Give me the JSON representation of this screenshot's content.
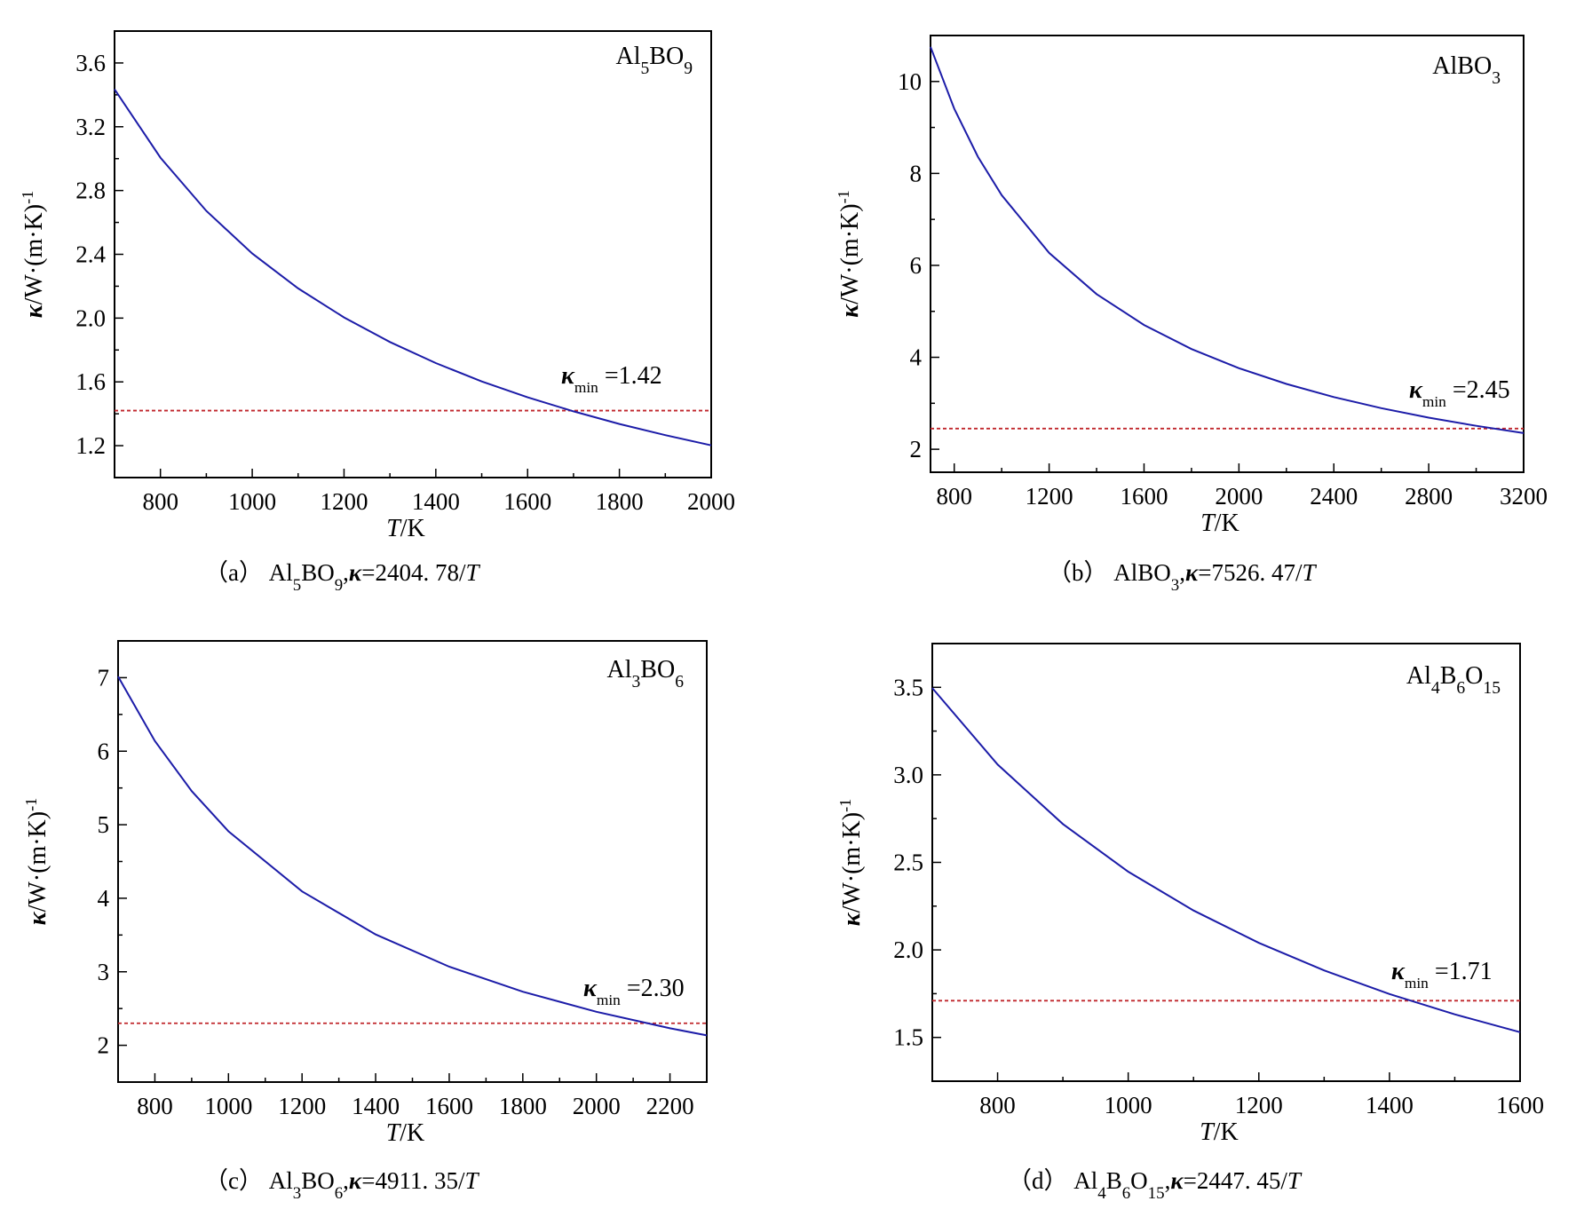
{
  "figure": {
    "panels": [
      {
        "caption": {
          "tag": "(a)",
          "formula": [
            [
              "Al",
              ""
            ],
            [
              "5",
              "sub"
            ],
            [
              "BO",
              ""
            ],
            [
              "9",
              "sub"
            ],
            [
              ",",
              ""
            ]
          ],
          "equation": "κ=2404. 78/T"
        },
        "label": [
          [
            "Al",
            ""
          ],
          [
            "5",
            "sub"
          ],
          [
            "BO",
            ""
          ],
          [
            "9",
            "sub"
          ]
        ],
        "kmin_label": "κmin =1.42",
        "kmin_text": {
          "sym": "κ",
          "sub": "min",
          "rest": "=1.42"
        }
      },
      {
        "caption": {
          "tag": "(b)",
          "formula": [
            [
              "AlBO",
              ""
            ],
            [
              "3",
              "sub"
            ],
            [
              ",",
              ""
            ]
          ],
          "equation": "κ=7526. 47/T"
        },
        "label": [
          [
            "AlBO",
            ""
          ],
          [
            "3",
            "sub"
          ]
        ],
        "kmin_label": "κmin=2.45",
        "kmin_text": {
          "sym": "κ",
          "sub": "min",
          "rest": "=2.45"
        }
      },
      {
        "caption": {
          "tag": "(c)",
          "formula": [
            [
              "Al",
              ""
            ],
            [
              "3",
              "sub"
            ],
            [
              "BO",
              ""
            ],
            [
              "6",
              "sub"
            ],
            [
              ",",
              ""
            ]
          ],
          "equation": "κ=4911. 35/T"
        },
        "label": [
          [
            "Al",
            ""
          ],
          [
            "3",
            "sub"
          ],
          [
            "BO",
            ""
          ],
          [
            "6",
            "sub"
          ]
        ],
        "kmin_label": "κmin =2.30",
        "kmin_text": {
          "sym": "κ",
          "sub": "min",
          "rest": "=2.30"
        }
      },
      {
        "caption": {
          "tag": "(d)",
          "formula": [
            [
              "Al",
              ""
            ],
            [
              "4",
              "sub"
            ],
            [
              "B",
              ""
            ],
            [
              "6",
              "sub"
            ],
            [
              "O",
              ""
            ],
            [
              "15",
              "sub"
            ],
            [
              ",",
              ""
            ]
          ],
          "equation": "κ=2447. 45/T"
        },
        "label": [
          [
            "Al",
            ""
          ],
          [
            "4",
            "sub"
          ],
          [
            "B",
            ""
          ],
          [
            "6",
            "sub"
          ],
          [
            "O",
            ""
          ],
          [
            "15",
            "sub"
          ]
        ],
        "kmin_label": "κmin=1.71",
        "kmin_text": {
          "sym": "κ",
          "sub": "min",
          "rest": "=1.71"
        }
      }
    ],
    "colors": {
      "curve": "#1c1ca8",
      "kmin_line": "#c0262b",
      "axes": "#000000"
    }
  },
  "chart_data": [
    {
      "type": "line",
      "xlabel": "T/K",
      "ylabel": "κ/W·(m·K)-1",
      "xlim": [
        700,
        2000
      ],
      "ylim": [
        1.0,
        3.8
      ],
      "xticks": [
        800,
        1000,
        1200,
        1400,
        1600,
        1800,
        2000
      ],
      "yticks": [
        1.2,
        1.6,
        2.0,
        2.4,
        2.8,
        3.2,
        3.6
      ],
      "ytick_labels": [
        "1.2",
        "1.6",
        "2.0",
        "2.4",
        "2.8",
        "3.2",
        "3.6"
      ],
      "series": [
        {
          "equation": "2404.78/T",
          "x": [
            700,
            800,
            900,
            1000,
            1100,
            1200,
            1300,
            1400,
            1500,
            1600,
            1700,
            1800,
            1900,
            2000
          ],
          "y": [
            3.435,
            3.006,
            2.672,
            2.405,
            2.186,
            2.004,
            1.85,
            1.718,
            1.603,
            1.503,
            1.415,
            1.336,
            1.266,
            1.202
          ]
        }
      ],
      "kmin": 1.42
    },
    {
      "type": "line",
      "xlabel": "T/K",
      "ylabel": "κ/W·(m·K)-1",
      "xlim": [
        700,
        3200
      ],
      "ylim": [
        1.5,
        11.0
      ],
      "xticks": [
        800,
        1200,
        1600,
        2000,
        2400,
        2800,
        3200
      ],
      "yticks": [
        2,
        4,
        6,
        8,
        10
      ],
      "ytick_labels": [
        "2",
        "4",
        "6",
        "8",
        "10"
      ],
      "series": [
        {
          "equation": "7526.47/T",
          "x": [
            700,
            800,
            900,
            1000,
            1200,
            1400,
            1600,
            1800,
            2000,
            2200,
            2400,
            2600,
            2800,
            3000,
            3200
          ],
          "y": [
            10.752,
            9.408,
            8.363,
            7.526,
            6.272,
            5.376,
            4.704,
            4.181,
            3.763,
            3.421,
            3.136,
            2.895,
            2.688,
            2.509,
            2.352
          ]
        }
      ],
      "kmin": 2.45
    },
    {
      "type": "line",
      "xlabel": "T/K",
      "ylabel": "κ/W·(m·K)-1",
      "xlim": [
        700,
        2300
      ],
      "ylim": [
        1.5,
        7.5
      ],
      "xticks": [
        800,
        1000,
        1200,
        1400,
        1600,
        1800,
        2000,
        2200
      ],
      "yticks": [
        2,
        3,
        4,
        5,
        6,
        7
      ],
      "ytick_labels": [
        "2",
        "3",
        "4",
        "5",
        "6",
        "7"
      ],
      "series": [
        {
          "equation": "4911.35/T",
          "x": [
            700,
            800,
            900,
            1000,
            1200,
            1400,
            1600,
            1800,
            2000,
            2200,
            2300
          ],
          "y": [
            7.016,
            6.139,
            5.457,
            4.911,
            4.093,
            3.508,
            3.07,
            2.729,
            2.456,
            2.232,
            2.135
          ]
        }
      ],
      "kmin": 2.3
    },
    {
      "type": "line",
      "xlabel": "T/K",
      "ylabel": "κ/W·(m·K)-1",
      "xlim": [
        700,
        1600
      ],
      "ylim": [
        1.25,
        3.75
      ],
      "xticks": [
        800,
        1000,
        1200,
        1400,
        1600
      ],
      "yticks": [
        1.5,
        2.0,
        2.5,
        3.0,
        3.5
      ],
      "ytick_labels": [
        "1.5",
        "2.0",
        "2.5",
        "3.0",
        "3.5"
      ],
      "series": [
        {
          "equation": "2447.45/T",
          "x": [
            700,
            800,
            900,
            1000,
            1100,
            1200,
            1300,
            1400,
            1500,
            1600
          ],
          "y": [
            3.496,
            3.059,
            2.719,
            2.447,
            2.225,
            2.04,
            1.883,
            1.748,
            1.632,
            1.53
          ]
        }
      ],
      "kmin": 1.71
    }
  ]
}
